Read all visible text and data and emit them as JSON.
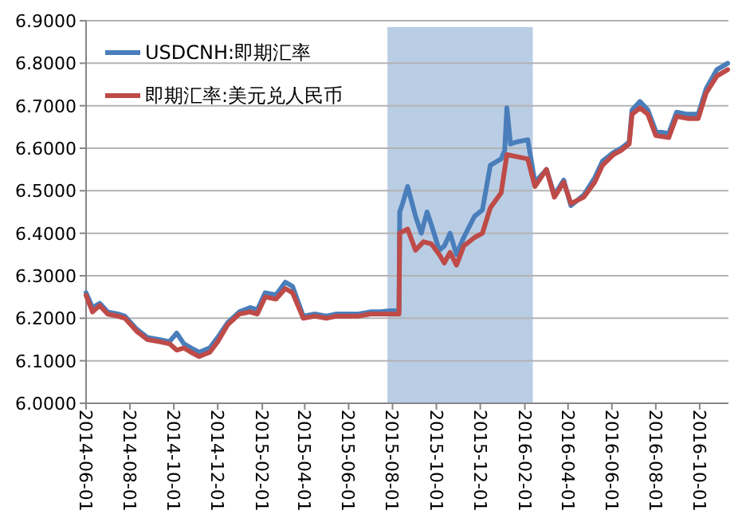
{
  "chart_data": {
    "type": "line",
    "xlim": [
      "2014-06-01",
      "2016-11-10"
    ],
    "xticks": [
      "2014-06-01",
      "2014-08-01",
      "2014-10-01",
      "2014-12-01",
      "2015-02-01",
      "2015-04-01",
      "2015-06-01",
      "2015-08-01",
      "2015-10-01",
      "2015-12-01",
      "2016-02-01",
      "2016-04-01",
      "2016-06-01",
      "2016-08-01",
      "2016-10-01"
    ],
    "ylim": [
      6.0,
      6.9
    ],
    "yticks": [
      {
        "value": 6.0,
        "label": "6.0000"
      },
      {
        "value": 6.1,
        "label": "6.1000"
      },
      {
        "value": 6.2,
        "label": "6.2000"
      },
      {
        "value": 6.3,
        "label": "6.3000"
      },
      {
        "value": 6.4,
        "label": "6.4000"
      },
      {
        "value": 6.5,
        "label": "6.5000"
      },
      {
        "value": 6.6,
        "label": "6.6000"
      },
      {
        "value": 6.7,
        "label": "6.7000"
      },
      {
        "value": 6.8,
        "label": "6.8000"
      },
      {
        "value": 6.9,
        "label": "6.9000"
      }
    ],
    "grid": "y",
    "legend": "top left",
    "bands": [
      {
        "axis": "x",
        "from": "2015-07-25",
        "to": "2016-02-12",
        "color": "#b9cde5"
      }
    ],
    "series": [
      {
        "name": "USDCNH:即期汇率",
        "color": "#4a7ebb",
        "x": [
          "2014-06-01",
          "2014-06-10",
          "2014-06-20",
          "2014-07-01",
          "2014-07-15",
          "2014-07-25",
          "2014-08-10",
          "2014-08-25",
          "2014-09-10",
          "2014-09-25",
          "2014-10-05",
          "2014-10-15",
          "2014-10-25",
          "2014-11-05",
          "2014-11-20",
          "2014-12-01",
          "2014-12-15",
          "2014-12-31",
          "2015-01-15",
          "2015-01-25",
          "2015-02-05",
          "2015-02-20",
          "2015-03-05",
          "2015-03-15",
          "2015-03-30",
          "2015-04-15",
          "2015-05-01",
          "2015-05-15",
          "2015-06-01",
          "2015-06-15",
          "2015-07-01",
          "2015-07-15",
          "2015-08-10",
          "2015-08-11",
          "2015-08-15",
          "2015-08-22",
          "2015-09-02",
          "2015-09-10",
          "2015-09-18",
          "2015-09-24",
          "2015-10-05",
          "2015-10-12",
          "2015-10-20",
          "2015-10-29",
          "2015-11-08",
          "2015-11-23",
          "2015-12-04",
          "2015-12-15",
          "2015-12-30",
          "2016-01-04",
          "2016-01-07",
          "2016-01-12",
          "2016-01-21",
          "2016-02-05",
          "2016-02-15",
          "2016-03-02",
          "2016-03-13",
          "2016-03-26",
          "2016-04-05",
          "2016-04-23",
          "2016-05-08",
          "2016-05-19",
          "2016-06-03",
          "2016-06-14",
          "2016-06-25",
          "2016-06-29",
          "2016-07-10",
          "2016-07-21",
          "2016-08-01",
          "2016-08-19",
          "2016-08-30",
          "2016-09-14",
          "2016-09-29",
          "2016-10-10",
          "2016-10-25",
          "2016-11-09"
        ],
        "values": [
          6.26,
          6.225,
          6.235,
          6.215,
          6.21,
          6.205,
          6.175,
          6.155,
          6.15,
          6.145,
          6.165,
          6.14,
          6.13,
          6.12,
          6.13,
          6.155,
          6.19,
          6.215,
          6.225,
          6.22,
          6.26,
          6.255,
          6.285,
          6.275,
          6.205,
          6.21,
          6.205,
          6.21,
          6.21,
          6.21,
          6.215,
          6.215,
          6.22,
          6.45,
          6.47,
          6.51,
          6.44,
          6.4,
          6.45,
          6.42,
          6.36,
          6.37,
          6.4,
          6.35,
          6.39,
          6.44,
          6.455,
          6.56,
          6.575,
          6.595,
          6.695,
          6.61,
          6.615,
          6.62,
          6.52,
          6.55,
          6.49,
          6.525,
          6.465,
          6.49,
          6.53,
          6.57,
          6.59,
          6.6,
          6.615,
          6.69,
          6.71,
          6.69,
          6.64,
          6.635,
          6.685,
          6.68,
          6.68,
          6.74,
          6.785,
          6.8
        ]
      },
      {
        "name": "即期汇率:美元兑人民币",
        "color": "#be4b48",
        "x": [
          "2014-06-01",
          "2014-06-10",
          "2014-06-20",
          "2014-07-01",
          "2014-07-15",
          "2014-07-25",
          "2014-08-10",
          "2014-08-25",
          "2014-09-10",
          "2014-09-25",
          "2014-10-05",
          "2014-10-15",
          "2014-10-25",
          "2014-11-05",
          "2014-11-20",
          "2014-12-01",
          "2014-12-15",
          "2014-12-31",
          "2015-01-15",
          "2015-01-25",
          "2015-02-05",
          "2015-02-20",
          "2015-03-05",
          "2015-03-15",
          "2015-03-30",
          "2015-04-15",
          "2015-05-01",
          "2015-05-15",
          "2015-06-01",
          "2015-06-15",
          "2015-07-01",
          "2015-07-15",
          "2015-08-10",
          "2015-08-11",
          "2015-08-22",
          "2015-09-02",
          "2015-09-13",
          "2015-09-24",
          "2015-10-05",
          "2015-10-12",
          "2015-10-20",
          "2015-10-29",
          "2015-11-08",
          "2015-11-23",
          "2015-12-04",
          "2015-12-15",
          "2015-12-30",
          "2016-01-07",
          "2016-01-21",
          "2016-02-05",
          "2016-02-15",
          "2016-03-02",
          "2016-03-13",
          "2016-03-26",
          "2016-04-05",
          "2016-04-23",
          "2016-05-08",
          "2016-05-19",
          "2016-06-03",
          "2016-06-14",
          "2016-06-25",
          "2016-06-29",
          "2016-07-10",
          "2016-07-21",
          "2016-08-01",
          "2016-08-19",
          "2016-08-30",
          "2016-09-14",
          "2016-09-29",
          "2016-10-10",
          "2016-10-25",
          "2016-11-09"
        ],
        "values": [
          6.254,
          6.215,
          6.23,
          6.21,
          6.205,
          6.2,
          6.17,
          6.15,
          6.145,
          6.14,
          6.125,
          6.13,
          6.12,
          6.11,
          6.12,
          6.145,
          6.185,
          6.21,
          6.215,
          6.21,
          6.25,
          6.245,
          6.27,
          6.26,
          6.2,
          6.205,
          6.2,
          6.205,
          6.205,
          6.205,
          6.21,
          6.21,
          6.21,
          6.4,
          6.41,
          6.36,
          6.38,
          6.375,
          6.35,
          6.33,
          6.355,
          6.325,
          6.37,
          6.39,
          6.4,
          6.46,
          6.495,
          6.585,
          6.58,
          6.575,
          6.51,
          6.55,
          6.485,
          6.52,
          6.47,
          6.485,
          6.52,
          6.56,
          6.585,
          6.595,
          6.61,
          6.68,
          6.695,
          6.68,
          6.63,
          6.625,
          6.675,
          6.67,
          6.67,
          6.73,
          6.77,
          6.785
        ]
      }
    ]
  }
}
